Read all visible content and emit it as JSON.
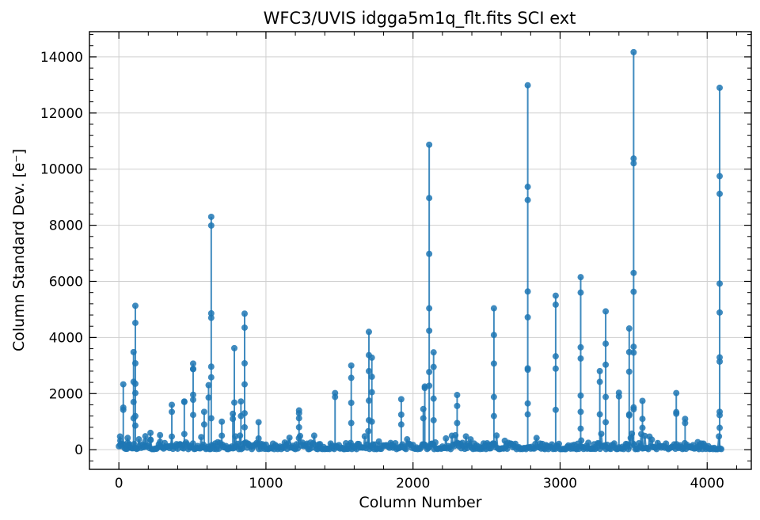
{
  "chart_data": {
    "type": "scatter",
    "title": "WFC3/UVIS idgga5m1q_flt.fits SCI ext",
    "xlabel": "Column Number",
    "ylabel": "Column Standard Dev. [e⁻]",
    "xlim": [
      -200,
      4300
    ],
    "ylim": [
      -700,
      14900
    ],
    "xticks": [
      0,
      1000,
      2000,
      3000,
      4000
    ],
    "xtick_labels": [
      "0",
      "1000",
      "2000",
      "3000",
      "4000"
    ],
    "yticks": [
      0,
      2000,
      4000,
      6000,
      8000,
      10000,
      12000,
      14000
    ],
    "ytick_labels": [
      "0",
      "2000",
      "4000",
      "6000",
      "8000",
      "10000",
      "12000",
      "14000"
    ],
    "grid": true,
    "series_color": "#1f77b4",
    "baseline": {
      "x_start": 0,
      "x_end": 4096,
      "typical_low": 20,
      "typical_high": 260
    },
    "spikes": [
      {
        "x": 10,
        "values": [
          320,
          180
        ]
      },
      {
        "x": 30,
        "values": [
          2330,
          1500,
          1420
        ]
      },
      {
        "x": 60,
        "values": [
          420,
          250
        ]
      },
      {
        "x": 100,
        "values": [
          3480,
          2420,
          1700,
          1120
        ]
      },
      {
        "x": 112,
        "values": [
          5130,
          4520,
          3080,
          2350,
          2020,
          1200,
          860
        ]
      },
      {
        "x": 180,
        "values": [
          480,
          300
        ]
      },
      {
        "x": 215,
        "values": [
          600,
          360
        ]
      },
      {
        "x": 280,
        "values": [
          520,
          280
        ]
      },
      {
        "x": 360,
        "values": [
          1600,
          1350
        ]
      },
      {
        "x": 445,
        "values": [
          1720,
          1700,
          560
        ]
      },
      {
        "x": 505,
        "values": [
          3070,
          2880,
          2870,
          1960,
          1780,
          1240
        ]
      },
      {
        "x": 580,
        "values": [
          1350,
          900
        ]
      },
      {
        "x": 610,
        "values": [
          2300,
          1860
        ]
      },
      {
        "x": 628,
        "values": [
          8300,
          7990,
          4860,
          4700,
          2960,
          2580,
          1120
        ]
      },
      {
        "x": 700,
        "values": [
          1000,
          500
        ]
      },
      {
        "x": 775,
        "values": [
          1280,
          1100
        ]
      },
      {
        "x": 785,
        "values": [
          3620,
          1680
        ]
      },
      {
        "x": 830,
        "values": [
          1720,
          1200
        ]
      },
      {
        "x": 855,
        "values": [
          4850,
          4350,
          3080,
          2330,
          1300,
          800
        ]
      },
      {
        "x": 950,
        "values": [
          980,
          400
        ]
      },
      {
        "x": 1225,
        "values": [
          1400,
          1300,
          1120,
          800
        ]
      },
      {
        "x": 1470,
        "values": [
          2020,
          1880
        ]
      },
      {
        "x": 1580,
        "values": [
          3000,
          2560,
          1670,
          950
        ]
      },
      {
        "x": 1700,
        "values": [
          4200,
          3370,
          2800,
          1750,
          1050
        ]
      },
      {
        "x": 1720,
        "values": [
          3280,
          2600,
          2050,
          1000
        ]
      },
      {
        "x": 1920,
        "values": [
          1800,
          1250,
          900
        ]
      },
      {
        "x": 2070,
        "values": [
          1450,
          1120
        ]
      },
      {
        "x": 2080,
        "values": [
          2250,
          2200
        ]
      },
      {
        "x": 2110,
        "values": [
          10870,
          8970,
          6980,
          5040,
          4240,
          2770,
          2280
        ]
      },
      {
        "x": 2140,
        "values": [
          3470,
          2950,
          1820,
          1050
        ]
      },
      {
        "x": 2300,
        "values": [
          1950,
          1560,
          950
        ]
      },
      {
        "x": 2550,
        "values": [
          5040,
          4090,
          3070,
          1880,
          1200
        ]
      },
      {
        "x": 2780,
        "values": [
          12990,
          9370,
          8900,
          5640,
          4720,
          2900,
          2850,
          1650,
          1260
        ]
      },
      {
        "x": 2970,
        "values": [
          5490,
          5170,
          3330,
          2890,
          1420
        ]
      },
      {
        "x": 3140,
        "values": [
          6150,
          5600,
          3650,
          3250,
          1930,
          1350,
          750
        ]
      },
      {
        "x": 3270,
        "values": [
          2800,
          2420,
          1260
        ]
      },
      {
        "x": 3310,
        "values": [
          4930,
          3780,
          3030,
          1880,
          980
        ]
      },
      {
        "x": 3400,
        "values": [
          2030,
          1900
        ]
      },
      {
        "x": 3470,
        "values": [
          4320,
          3480,
          2780,
          1260,
          1220
        ]
      },
      {
        "x": 3500,
        "values": [
          14170,
          10380,
          10210,
          6300,
          5630,
          3670,
          3460,
          1510,
          1440
        ]
      },
      {
        "x": 3560,
        "values": [
          1740,
          1100,
          780
        ]
      },
      {
        "x": 3790,
        "values": [
          2020,
          1340,
          1280
        ]
      },
      {
        "x": 3850,
        "values": [
          1100,
          950
        ]
      },
      {
        "x": 4085,
        "values": [
          12900,
          9750,
          9120,
          5920,
          4890,
          3290,
          3140,
          1350,
          1230,
          780
        ]
      }
    ]
  }
}
